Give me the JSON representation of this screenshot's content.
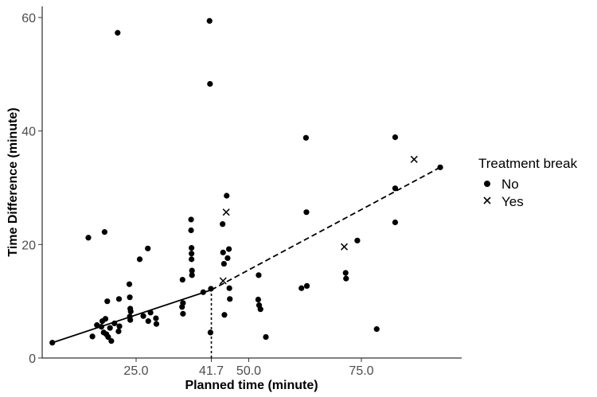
{
  "chart_data": {
    "type": "scatter",
    "xlabel": "Planned time (minute)",
    "ylabel": "Time Difference (minute)",
    "xlim": [
      4,
      94
    ],
    "ylim": [
      0,
      62
    ],
    "x_ticks": [
      25.0,
      41.7,
      50.0,
      75.0
    ],
    "x_tick_labels": [
      "25.0",
      "41.7",
      "50.0",
      "75.0"
    ],
    "y_ticks": [
      0,
      20,
      40,
      60
    ],
    "y_tick_labels": [
      "0",
      "20",
      "40",
      "60"
    ],
    "grid": false,
    "legend": {
      "title": "Treatment break",
      "position": "right",
      "entries": [
        {
          "label": "No",
          "marker": "circle"
        },
        {
          "label": "Yes",
          "marker": "x"
        }
      ]
    },
    "series": [
      {
        "name": "No",
        "marker": "circle",
        "color": "#000000",
        "points": [
          [
            6.4,
            2.7
          ],
          [
            14.4,
            21.2
          ],
          [
            15.3,
            3.8
          ],
          [
            16.3,
            5.8
          ],
          [
            17.3,
            5.5
          ],
          [
            17.5,
            6.5
          ],
          [
            17.8,
            4.5
          ],
          [
            18.0,
            22.2
          ],
          [
            18.2,
            6.9
          ],
          [
            18.4,
            4.2
          ],
          [
            18.6,
            10.0
          ],
          [
            18.8,
            3.7
          ],
          [
            19.2,
            5.3
          ],
          [
            19.5,
            3.0
          ],
          [
            20.2,
            6.1
          ],
          [
            20.9,
            57.3
          ],
          [
            21.1,
            4.7
          ],
          [
            21.2,
            10.4
          ],
          [
            21.3,
            5.6
          ],
          [
            23.5,
            13.0
          ],
          [
            23.6,
            10.7
          ],
          [
            23.6,
            7.3
          ],
          [
            23.7,
            8.7
          ],
          [
            23.7,
            6.7
          ],
          [
            23.8,
            8.2
          ],
          [
            25.8,
            17.4
          ],
          [
            26.6,
            7.4
          ],
          [
            27.6,
            19.3
          ],
          [
            27.7,
            6.5
          ],
          [
            28.2,
            8.0
          ],
          [
            29.4,
            7.0
          ],
          [
            29.5,
            6.0
          ],
          [
            35.2,
            9.0
          ],
          [
            35.3,
            13.8
          ],
          [
            35.4,
            7.8
          ],
          [
            35.4,
            9.7
          ],
          [
            37.2,
            24.4
          ],
          [
            37.2,
            22.5
          ],
          [
            37.3,
            19.4
          ],
          [
            37.3,
            18.4
          ],
          [
            37.3,
            17.4
          ],
          [
            37.4,
            15.4
          ],
          [
            37.4,
            14.6
          ],
          [
            39.9,
            11.6
          ],
          [
            41.3,
            59.4
          ],
          [
            41.4,
            48.3
          ],
          [
            41.5,
            4.5
          ],
          [
            41.6,
            12.2
          ],
          [
            44.2,
            23.6
          ],
          [
            44.3,
            18.6
          ],
          [
            44.5,
            16.6
          ],
          [
            44.6,
            7.6
          ],
          [
            45.1,
            28.6
          ],
          [
            45.3,
            17.6
          ],
          [
            45.6,
            19.2
          ],
          [
            45.7,
            12.3
          ],
          [
            45.8,
            10.4
          ],
          [
            52.1,
            10.3
          ],
          [
            52.2,
            14.6
          ],
          [
            52.3,
            9.3
          ],
          [
            52.6,
            8.6
          ],
          [
            53.8,
            3.7
          ],
          [
            61.7,
            12.3
          ],
          [
            62.7,
            38.8
          ],
          [
            62.8,
            25.7
          ],
          [
            62.9,
            12.7
          ],
          [
            71.5,
            15.0
          ],
          [
            71.6,
            14.0
          ],
          [
            74.1,
            20.7
          ],
          [
            78.4,
            5.1
          ],
          [
            82.5,
            38.9
          ],
          [
            82.5,
            29.9
          ],
          [
            82.5,
            23.9
          ],
          [
            92.5,
            33.6
          ]
        ]
      },
      {
        "name": "Yes",
        "marker": "x",
        "color": "#000000",
        "points": [
          [
            44.3,
            13.6
          ],
          [
            45.0,
            25.7
          ],
          [
            71.2,
            19.6
          ],
          [
            86.7,
            35.0
          ]
        ]
      }
    ],
    "fit_lines": [
      {
        "style": "solid",
        "points": [
          [
            6.4,
            2.7
          ],
          [
            41.7,
            12.0
          ]
        ]
      },
      {
        "style": "dashed",
        "points": [
          [
            41.7,
            12.0
          ],
          [
            92.5,
            33.6
          ]
        ]
      }
    ],
    "reference_lines": [
      {
        "style": "dotted",
        "orientation": "vertical",
        "x": 41.7,
        "y_from": 0,
        "y_to": 12.0
      }
    ]
  }
}
